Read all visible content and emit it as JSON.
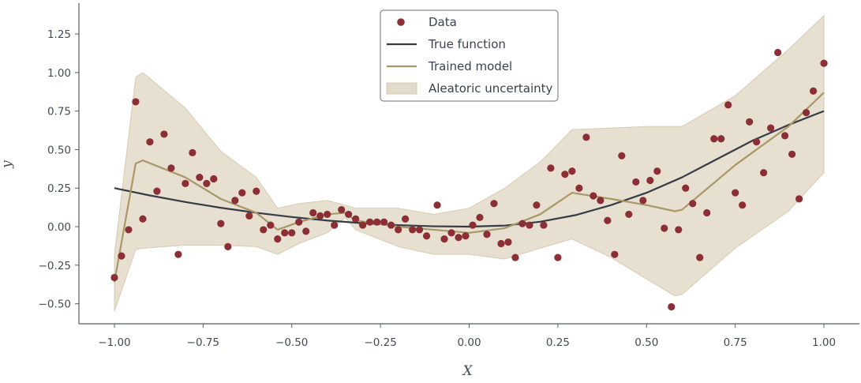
{
  "chart_data": {
    "type": "scatter",
    "title": "",
    "xlabel": "X",
    "ylabel": "y",
    "xlim": [
      -1.1,
      1.1
    ],
    "ylim": [
      -0.63,
      1.45
    ],
    "grid": false,
    "legend_position": "top-center",
    "x_ticks": [
      -1.0,
      -0.75,
      -0.5,
      -0.25,
      0.0,
      0.25,
      0.5,
      0.75,
      1.0
    ],
    "x_tick_labels": [
      "−1.00",
      "−0.75",
      "−0.50",
      "−0.25",
      "0.00",
      "0.25",
      "0.50",
      "0.75",
      "1.00"
    ],
    "y_ticks": [
      -0.5,
      -0.25,
      0.0,
      0.25,
      0.5,
      0.75,
      1.0,
      1.25
    ],
    "y_tick_labels": [
      "−0.50",
      "−0.25",
      "0.00",
      "0.25",
      "0.50",
      "0.75",
      "1.00",
      "1.25"
    ],
    "colors": {
      "data": "#8b2e35",
      "true_function": "#353c46",
      "trained_model": "#a89868",
      "uncertainty": "#c2b08a",
      "axis": "#555c66"
    },
    "legend": [
      {
        "label": "Data",
        "kind": "marker"
      },
      {
        "label": "True function",
        "kind": "line"
      },
      {
        "label": "Trained model",
        "kind": "line"
      },
      {
        "label": "Aleatoric uncertainty",
        "kind": "patch"
      }
    ],
    "series": [
      {
        "name": "Data",
        "kind": "scatter",
        "points": [
          [
            -1.0,
            -0.33
          ],
          [
            -0.98,
            -0.19
          ],
          [
            -0.96,
            -0.02
          ],
          [
            -0.94,
            0.81
          ],
          [
            -0.92,
            0.05
          ],
          [
            -0.9,
            0.55
          ],
          [
            -0.88,
            0.23
          ],
          [
            -0.86,
            0.6
          ],
          [
            -0.84,
            0.38
          ],
          [
            -0.82,
            -0.18
          ],
          [
            -0.8,
            0.28
          ],
          [
            -0.78,
            0.48
          ],
          [
            -0.76,
            0.32
          ],
          [
            -0.74,
            0.28
          ],
          [
            -0.72,
            0.31
          ],
          [
            -0.7,
            0.02
          ],
          [
            -0.68,
            -0.13
          ],
          [
            -0.66,
            0.17
          ],
          [
            -0.64,
            0.22
          ],
          [
            -0.62,
            0.07
          ],
          [
            -0.6,
            0.23
          ],
          [
            -0.58,
            -0.02
          ],
          [
            -0.56,
            0.01
          ],
          [
            -0.54,
            -0.08
          ],
          [
            -0.52,
            -0.04
          ],
          [
            -0.5,
            -0.04
          ],
          [
            -0.48,
            0.03
          ],
          [
            -0.46,
            -0.03
          ],
          [
            -0.44,
            0.09
          ],
          [
            -0.42,
            0.07
          ],
          [
            -0.4,
            0.08
          ],
          [
            -0.38,
            0.01
          ],
          [
            -0.36,
            0.11
          ],
          [
            -0.34,
            0.08
          ],
          [
            -0.32,
            0.05
          ],
          [
            -0.3,
            0.01
          ],
          [
            -0.28,
            0.03
          ],
          [
            -0.26,
            0.03
          ],
          [
            -0.24,
            0.03
          ],
          [
            -0.22,
            0.01
          ],
          [
            -0.2,
            -0.02
          ],
          [
            -0.18,
            0.05
          ],
          [
            -0.16,
            -0.02
          ],
          [
            -0.14,
            -0.02
          ],
          [
            -0.12,
            -0.06
          ],
          [
            -0.09,
            0.14
          ],
          [
            -0.07,
            -0.08
          ],
          [
            -0.05,
            -0.04
          ],
          [
            -0.03,
            -0.07
          ],
          [
            -0.01,
            -0.06
          ],
          [
            0.01,
            0.01
          ],
          [
            0.03,
            0.06
          ],
          [
            0.05,
            -0.05
          ],
          [
            0.07,
            0.15
          ],
          [
            0.09,
            -0.11
          ],
          [
            0.11,
            -0.1
          ],
          [
            0.13,
            -0.2
          ],
          [
            0.15,
            0.02
          ],
          [
            0.17,
            0.01
          ],
          [
            0.19,
            0.14
          ],
          [
            0.21,
            0.01
          ],
          [
            0.23,
            0.38
          ],
          [
            0.25,
            -0.2
          ],
          [
            0.27,
            0.34
          ],
          [
            0.29,
            0.36
          ],
          [
            0.31,
            0.25
          ],
          [
            0.33,
            0.58
          ],
          [
            0.35,
            0.2
          ],
          [
            0.37,
            0.17
          ],
          [
            0.39,
            0.04
          ],
          [
            0.41,
            -0.18
          ],
          [
            0.43,
            0.46
          ],
          [
            0.45,
            0.08
          ],
          [
            0.47,
            0.29
          ],
          [
            0.49,
            0.17
          ],
          [
            0.51,
            0.3
          ],
          [
            0.53,
            0.36
          ],
          [
            0.55,
            -0.01
          ],
          [
            0.57,
            -0.52
          ],
          [
            0.59,
            -0.02
          ],
          [
            0.61,
            0.25
          ],
          [
            0.63,
            0.15
          ],
          [
            0.65,
            -0.2
          ],
          [
            0.67,
            0.09
          ],
          [
            0.69,
            0.57
          ],
          [
            0.71,
            0.57
          ],
          [
            0.73,
            0.79
          ],
          [
            0.75,
            0.22
          ],
          [
            0.77,
            0.14
          ],
          [
            0.79,
            0.68
          ],
          [
            0.81,
            0.55
          ],
          [
            0.83,
            0.35
          ],
          [
            0.85,
            0.64
          ],
          [
            0.87,
            1.13
          ],
          [
            0.89,
            0.59
          ],
          [
            0.91,
            0.47
          ],
          [
            0.93,
            0.18
          ],
          [
            0.95,
            0.74
          ],
          [
            0.97,
            0.88
          ],
          [
            1.0,
            1.06
          ]
        ]
      },
      {
        "name": "True function",
        "kind": "line",
        "points": [
          [
            -1.0,
            0.25
          ],
          [
            -0.9,
            0.2025
          ],
          [
            -0.8,
            0.16
          ],
          [
            -0.7,
            0.1225
          ],
          [
            -0.6,
            0.09
          ],
          [
            -0.5,
            0.0625
          ],
          [
            -0.4,
            0.04
          ],
          [
            -0.3,
            0.0225
          ],
          [
            -0.2,
            0.01
          ],
          [
            -0.1,
            0.0025
          ],
          [
            0.0,
            0.0
          ],
          [
            0.1,
            0.007
          ],
          [
            0.2,
            0.032
          ],
          [
            0.3,
            0.075
          ],
          [
            0.4,
            0.14
          ],
          [
            0.5,
            0.22
          ],
          [
            0.6,
            0.32
          ],
          [
            0.7,
            0.44
          ],
          [
            0.8,
            0.56
          ],
          [
            0.9,
            0.66
          ],
          [
            1.0,
            0.75
          ]
        ]
      },
      {
        "name": "Trained model",
        "kind": "line",
        "points": [
          [
            -1.0,
            -0.36
          ],
          [
            -0.94,
            0.41
          ],
          [
            -0.92,
            0.43
          ],
          [
            -0.8,
            0.32
          ],
          [
            -0.7,
            0.18
          ],
          [
            -0.6,
            0.09
          ],
          [
            -0.54,
            -0.02
          ],
          [
            -0.48,
            0.03
          ],
          [
            -0.4,
            0.08
          ],
          [
            -0.35,
            0.09
          ],
          [
            -0.32,
            0.04
          ],
          [
            -0.2,
            0.0
          ],
          [
            -0.1,
            -0.02
          ],
          [
            0.0,
            -0.04
          ],
          [
            0.1,
            -0.01
          ],
          [
            0.2,
            0.08
          ],
          [
            0.29,
            0.22
          ],
          [
            0.4,
            0.18
          ],
          [
            0.5,
            0.14
          ],
          [
            0.58,
            0.1
          ],
          [
            0.6,
            0.11
          ],
          [
            0.75,
            0.4
          ],
          [
            0.9,
            0.65
          ],
          [
            1.0,
            0.87
          ]
        ]
      },
      {
        "name": "Aleatoric uncertainty",
        "kind": "band",
        "x": [
          -1.0,
          -0.94,
          -0.92,
          -0.8,
          -0.7,
          -0.6,
          -0.54,
          -0.48,
          -0.4,
          -0.35,
          -0.32,
          -0.2,
          -0.1,
          0.0,
          0.1,
          0.2,
          0.29,
          0.4,
          0.5,
          0.58,
          0.6,
          0.75,
          0.9,
          1.0
        ],
        "lower": [
          -0.55,
          -0.15,
          -0.14,
          -0.12,
          -0.12,
          -0.13,
          -0.18,
          -0.11,
          -0.04,
          0.06,
          -0.02,
          -0.13,
          -0.18,
          -0.18,
          -0.21,
          -0.14,
          -0.08,
          -0.2,
          -0.34,
          -0.45,
          -0.44,
          -0.14,
          0.1,
          0.35
        ],
        "upper": [
          -0.18,
          0.97,
          1.0,
          0.77,
          0.49,
          0.32,
          0.12,
          0.15,
          0.17,
          0.14,
          0.12,
          0.12,
          0.08,
          0.12,
          0.25,
          0.42,
          0.63,
          0.64,
          0.65,
          0.65,
          0.65,
          0.85,
          1.15,
          1.37
        ]
      }
    ]
  }
}
